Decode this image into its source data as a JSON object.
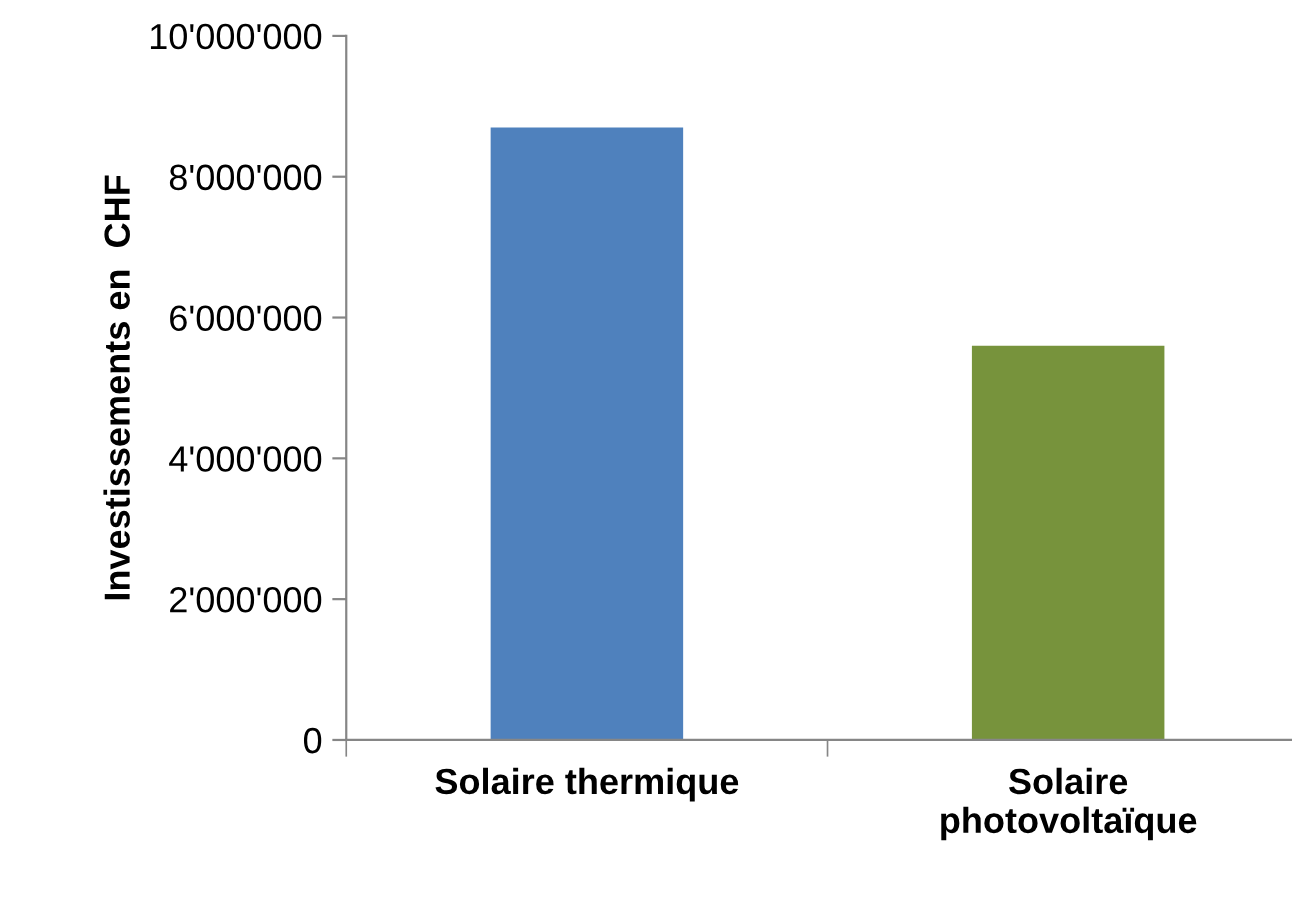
{
  "chart_data": {
    "type": "bar",
    "ylabel": "Investissements en  CHF",
    "categories": [
      "Solaire thermique",
      "Solaire\nphotovoltaïque"
    ],
    "values": [
      8700000,
      5600000
    ],
    "colors": [
      "#4f81bd",
      "#77933c"
    ],
    "ylim": [
      0,
      10000000
    ],
    "yticks": [
      {
        "value": 0,
        "label": "0"
      },
      {
        "value": 2000000,
        "label": "2'000'000"
      },
      {
        "value": 4000000,
        "label": "4'000'000"
      },
      {
        "value": 6000000,
        "label": "6'000'000"
      },
      {
        "value": 8000000,
        "label": "8'000'000"
      },
      {
        "value": 10000000,
        "label": "10'000'000"
      }
    ],
    "grid": false,
    "legend": false
  }
}
